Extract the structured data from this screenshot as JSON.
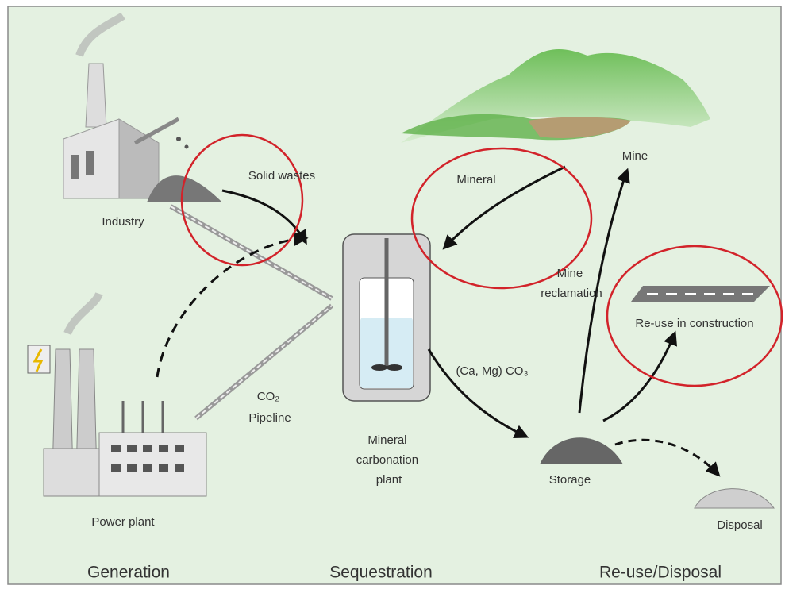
{
  "labels": {
    "industry": "Industry",
    "solid_wastes": "Solid wastes",
    "mineral": "Mineral",
    "mine": "Mine",
    "mine_reclamation": [
      "Mine",
      "reclamation"
    ],
    "reuse_construction": "Re-use in construction",
    "carbonate": "(Ca, Mg) CO₃",
    "pipeline": [
      "CO₂",
      "Pipeline"
    ],
    "plant": [
      "Mineral",
      "carbonation",
      "plant"
    ],
    "storage": "Storage",
    "disposal": "Disposal",
    "power_plant": "Power plant"
  },
  "stages": [
    "Generation",
    "Sequestration",
    "Re-use/Disposal"
  ]
}
